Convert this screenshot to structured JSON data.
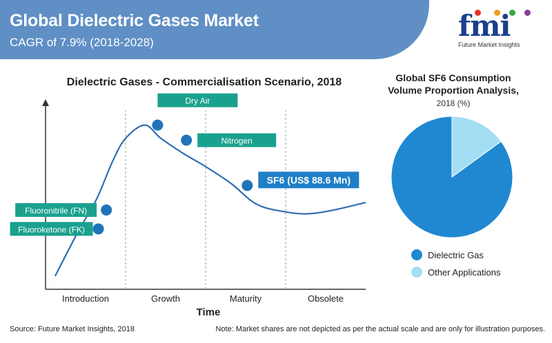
{
  "header": {
    "title": "Global Dielectric Gases Market",
    "subtitle": "CAGR of 7.9% (2018-2028)"
  },
  "logo": {
    "text": "fmi",
    "tagline": "Future Market Insights"
  },
  "colors": {
    "header_band": "#5f8fc5",
    "curve": "#2f6db3",
    "marker": "#1f74b9",
    "label_teal": "#1aa18e",
    "label_blue": "#1f7fc7",
    "pie_main": "#1f88d1",
    "pie_other": "#a3def5"
  },
  "chart_data": [
    {
      "type": "line",
      "title": "Dielectric Gases - Commercialisation Scenario, 2018",
      "xlabel": "Time",
      "ylabel": "",
      "stages": [
        "Introduction",
        "Growth",
        "Maturity",
        "Obsolete"
      ],
      "curve": [
        [
          0.03,
          0.07
        ],
        [
          0.1,
          0.3
        ],
        [
          0.16,
          0.48
        ],
        [
          0.21,
          0.68
        ],
        [
          0.25,
          0.8
        ],
        [
          0.31,
          0.87
        ],
        [
          0.36,
          0.8
        ],
        [
          0.43,
          0.72
        ],
        [
          0.5,
          0.65
        ],
        [
          0.58,
          0.56
        ],
        [
          0.66,
          0.45
        ],
        [
          0.75,
          0.41
        ],
        [
          0.82,
          0.4
        ],
        [
          0.9,
          0.42
        ],
        [
          1.0,
          0.46
        ]
      ],
      "markers": [
        {
          "label": "Fluoroketone (FK)",
          "x": 0.165,
          "y": 0.32
        },
        {
          "label": "Fluoronitrile (FN)",
          "x": 0.19,
          "y": 0.42
        },
        {
          "label": "Dry Air",
          "x": 0.35,
          "y": 0.87
        },
        {
          "label": "Nitrogen",
          "x": 0.44,
          "y": 0.79
        },
        {
          "label": "SF6 (US$ 88.6 Mn)",
          "x": 0.63,
          "y": 0.55
        }
      ]
    },
    {
      "type": "pie",
      "title": "Global SF6 Consumption Volume Proportion Analysis,",
      "subtitle": "2018 (%)",
      "labels": [
        "Dielectric Gas",
        "Other Applications"
      ],
      "values": [
        85,
        15
      ]
    }
  ],
  "footer": {
    "source": "Source: Future Market Insights, 2018",
    "note": "Note: Market shares are not depicted as per the actual scale and are only for illustration purposes."
  }
}
